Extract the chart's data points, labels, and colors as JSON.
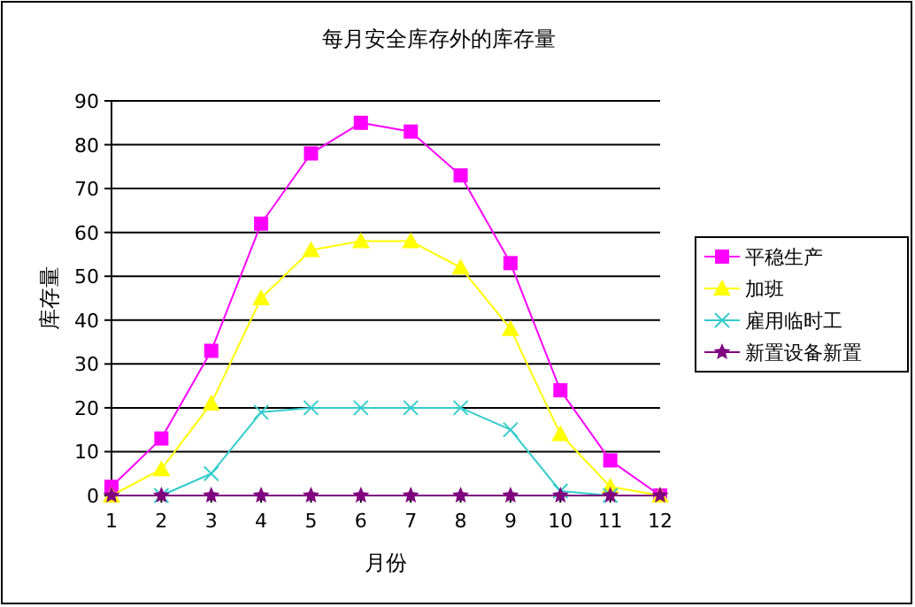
{
  "chart_data": {
    "type": "line",
    "title": "每月安全库存外的库存量",
    "xlabel": "月份",
    "ylabel": "库存量",
    "x": [
      1,
      2,
      3,
      4,
      5,
      6,
      7,
      8,
      9,
      10,
      11,
      12
    ],
    "xlim": [
      1,
      12
    ],
    "xticks": [
      1,
      2,
      3,
      4,
      5,
      6,
      7,
      8,
      9,
      10,
      11,
      12
    ],
    "ylim": [
      0,
      90
    ],
    "yticks": [
      0,
      10,
      20,
      30,
      40,
      50,
      60,
      70,
      80,
      90
    ],
    "grid": "y",
    "legend": "right",
    "series": [
      {
        "name": "平稳生产",
        "color": "#ff00ff",
        "marker": "square",
        "values": [
          2,
          13,
          33,
          62,
          78,
          85,
          83,
          73,
          53,
          24,
          8,
          0
        ]
      },
      {
        "name": "加班",
        "color": "#ffff00",
        "marker": "triangle",
        "values": [
          0,
          6,
          21,
          45,
          56,
          58,
          58,
          52,
          38,
          14,
          2,
          0
        ]
      },
      {
        "name": "雇用临时工",
        "color": "#33cccc",
        "marker": "cross",
        "values": [
          null,
          0,
          5,
          19,
          20,
          20,
          20,
          20,
          15,
          1,
          0,
          null
        ]
      },
      {
        "name": "新置设备新置",
        "color": "#800080",
        "marker": "star",
        "values": [
          0,
          0,
          0,
          0,
          0,
          0,
          0,
          0,
          0,
          0,
          0,
          0
        ]
      }
    ]
  }
}
